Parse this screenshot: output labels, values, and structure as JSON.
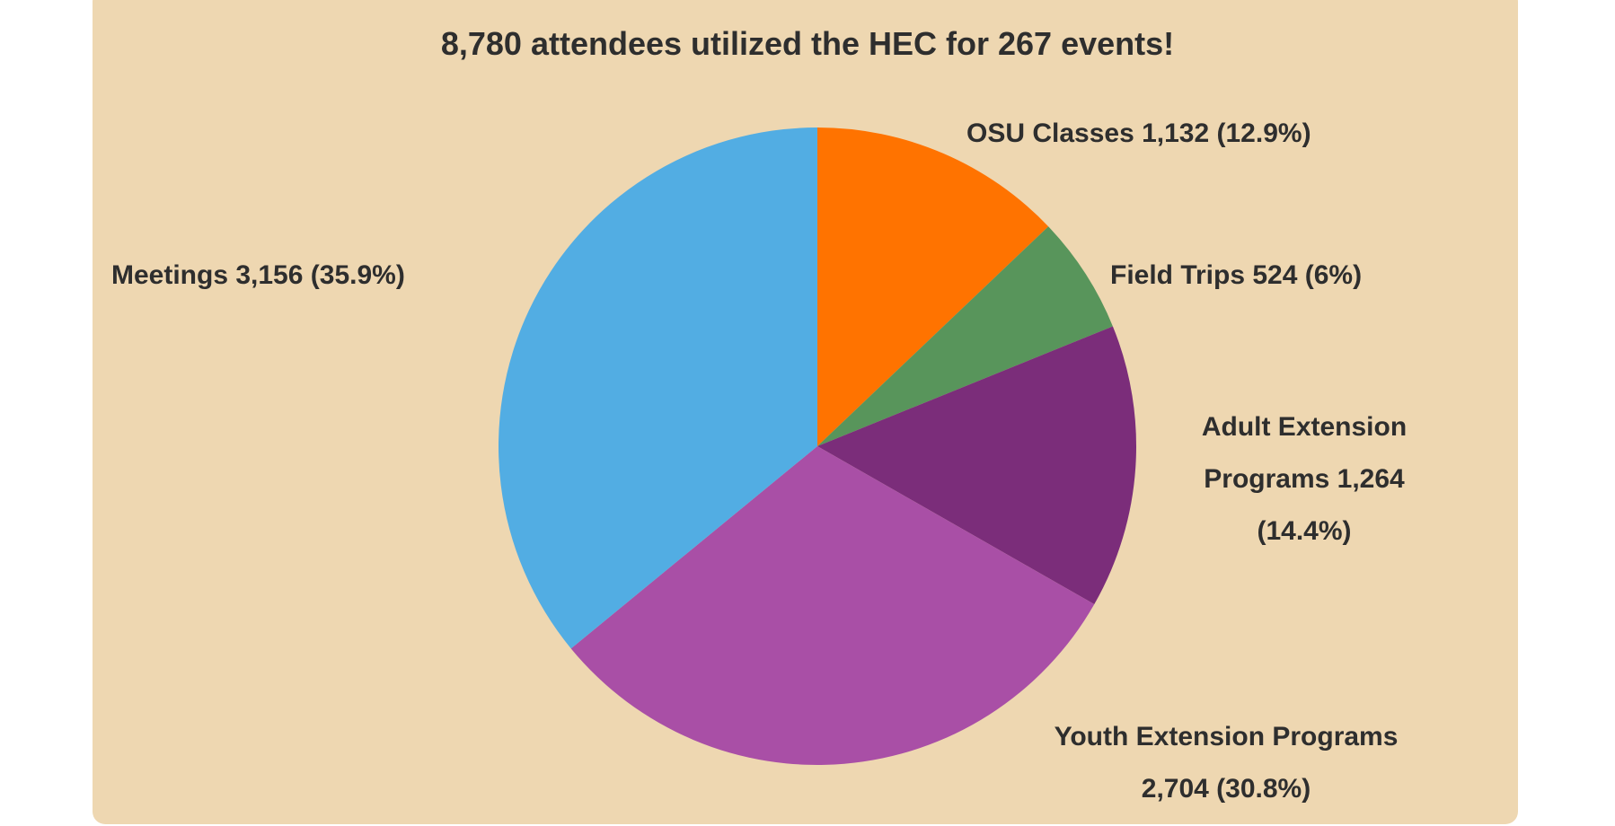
{
  "chart_data": {
    "type": "pie",
    "title": "8,780 attendees utilized the HEC for 267 events!",
    "start_angle": "12 o'clock",
    "direction": "clockwise",
    "slices": [
      {
        "name": "OSU Classes",
        "value": 1132,
        "percent": 12.9,
        "label": "OSU Classes 1,132 (12.9%)",
        "color": "#ff7300"
      },
      {
        "name": "Field Trips",
        "value": 524,
        "percent": 6,
        "label": "Field Trips 524 (6%)",
        "color": "#58955b"
      },
      {
        "name": "Adult Extension Programs",
        "value": 1264,
        "percent": 14.4,
        "label_lines": [
          "Adult Extension",
          "Programs 1,264",
          "(14.4%)"
        ],
        "color": "#7b2d7a"
      },
      {
        "name": "Youth Extension Programs",
        "value": 2704,
        "percent": 30.8,
        "label_lines": [
          "Youth Extension Programs",
          "2,704 (30.8%)"
        ],
        "color": "#a94fa6"
      },
      {
        "name": "Meetings",
        "value": 3156,
        "percent": 35.9,
        "label": "Meetings 3,156 (35.9%)",
        "color": "#52ade3"
      }
    ]
  }
}
